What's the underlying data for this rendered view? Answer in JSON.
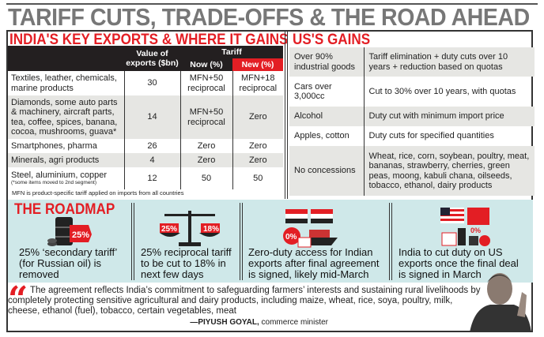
{
  "title": "TARIFF CUTS, TRADE-OFFS & THE ROAD AHEAD",
  "india": {
    "heading": "INDIA'S KEY EXPORTS & WHERE IT GAINS",
    "headers": {
      "value": "Value of exports ($bn)",
      "tariff": "Tariff",
      "now": "Now (%)",
      "new": "New (%)"
    },
    "rows": [
      {
        "item": "Textiles, leather, chemicals, marine products",
        "value": "30",
        "now": "MFN+50 reciprocal",
        "new": "MFN+18 reciprocal"
      },
      {
        "item": "Diamonds, some auto parts & machinery, aircraft parts, tea, coffee, spices, banana, cocoa, mushrooms, guava*",
        "value": "14",
        "now": "MFN+50 reciprocal",
        "new": "Zero"
      },
      {
        "item": "Smartphones, pharma",
        "value": "26",
        "now": "Zero",
        "new": "Zero"
      },
      {
        "item": "Minerals, agri products",
        "value": "4",
        "now": "Zero",
        "new": "Zero"
      },
      {
        "item": "Steel, aluminium, copper",
        "note": "(*some items moved to 2nd segment)",
        "value": "12",
        "now": "50",
        "new": "50"
      }
    ],
    "footnote": "MFN is product-specific tariff applied on imports from all countries"
  },
  "us": {
    "heading": "US'S GAINS",
    "rows": [
      {
        "item": "Over 90% industrial goods",
        "detail": "Tariff elimination + duty cuts over 10 years + reduction based on quotas"
      },
      {
        "item": "Cars over 3,000cc",
        "detail": "Cut to 30% over 10 years, with quotas"
      },
      {
        "item": "Alcohol",
        "detail": "Duty cut with minimum import price"
      },
      {
        "item": "Apples, cotton",
        "detail": "Duty cuts for specified quantities"
      },
      {
        "item": "No concessions",
        "detail": "Wheat, rice, corn, soybean, poultry, meat, bananas, strawberry, cherries, green peas, moong, kabuli chana, oilseeds, tobacco, ethanol, dairy products"
      }
    ]
  },
  "roadmap": {
    "heading": "THE ROADMAP",
    "items": [
      {
        "text": "25% ‘secondary tariff’ (for Russian oil) is removed",
        "icon": "oil-barrel-icon",
        "badge": "25%"
      },
      {
        "text": "25% reciprocal tariff to be cut to 18% in next few days",
        "icon": "scales-icon",
        "badge_left": "25%",
        "badge_right": "18%"
      },
      {
        "text": "Zero-duty access for Indian exports after final agreement is signed, likely mid-March",
        "icon": "cargo-ship-icon",
        "badge": "0%"
      },
      {
        "text": "India to cut duty on US exports once the final deal is signed in March",
        "icon": "us-goods-icon",
        "badge": "0%"
      }
    ]
  },
  "quote": {
    "text": "The agreement reflects India’s commitment to safeguarding farmers’ interests and sustaining rural livelihoods by completely protecting sensitive agricultural and dairy products, including maize, wheat, rice, soya, poultry, milk, cheese, ethanol (fuel), tobacco, certain vegetables, meat",
    "author": "—PIYUSH GOYAL,",
    "role": "commerce minister"
  },
  "colors": {
    "accent": "#e31e24",
    "header": "#231f20",
    "roadmap_bg": "#cfe8e9",
    "title": "#777777"
  }
}
